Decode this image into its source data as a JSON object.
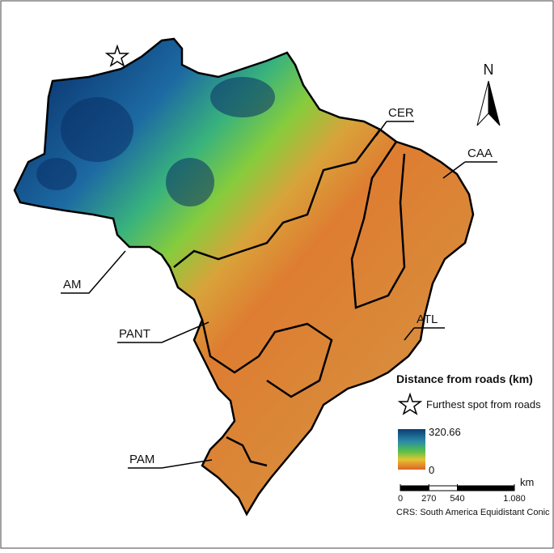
{
  "map": {
    "north_label": "N",
    "regions": [
      "CER",
      "CAA",
      "AM",
      "PANT",
      "ATL",
      "PAM"
    ],
    "legend": {
      "title": "Distance from roads (km)",
      "star_label": "Furthest spot from roads",
      "color_max": 320.66,
      "color_min": 0
    },
    "scale_bar": {
      "unit": "km",
      "ticks": [
        0,
        270,
        540,
        {
          "value": 1080,
          "label": "1.080"
        }
      ]
    },
    "crs": "CRS: South America Equidistant Conic"
  }
}
